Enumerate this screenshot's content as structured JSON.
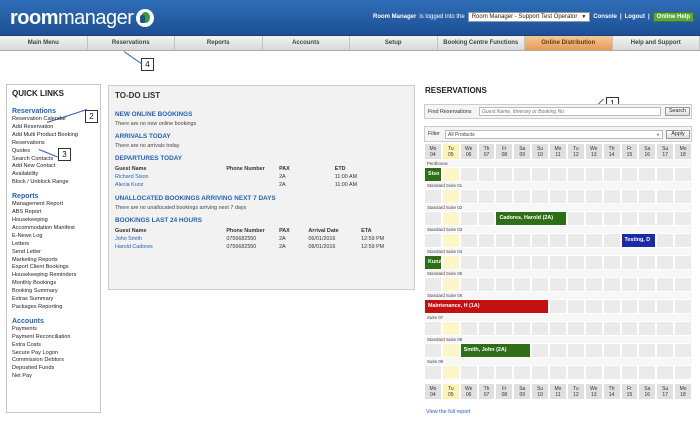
{
  "header": {
    "logo_bold": "room",
    "logo_thin": "manager",
    "logged_in_prefix": "Room Manager",
    "logged_in_text": "is logged into the",
    "account_selected": "Room Manager - Support Test Operator",
    "console": "Console",
    "logout": "Logout",
    "online_help": "Online Help"
  },
  "nav": [
    {
      "label": "Main Menu",
      "active": false
    },
    {
      "label": "Reservations",
      "active": false
    },
    {
      "label": "Reports",
      "active": false
    },
    {
      "label": "Accounts",
      "active": false
    },
    {
      "label": "Setup",
      "active": false
    },
    {
      "label": "Booking Centre Functions",
      "active": false
    },
    {
      "label": "Online Distribution",
      "active": true
    },
    {
      "label": "Help and Support",
      "active": false
    }
  ],
  "callouts": [
    "1",
    "2",
    "3",
    "4"
  ],
  "quick_links": {
    "title": "QUICK LINKS",
    "sections": [
      {
        "heading": "Reservations",
        "links": [
          "Reservation Calendar",
          "Add Reservation",
          "Add Multi Product Booking",
          "Reservations",
          "Quotes",
          "Search Contacts",
          "Add New Contact",
          "Availability",
          "Block / Unblock Range"
        ]
      },
      {
        "heading": "Reports",
        "links": [
          "Management Report",
          "ABS Report",
          "Housekeeping",
          "Accommodation Manifest",
          "E-News Log",
          "Letters",
          "Send Letter",
          "Marketing Reports",
          "Export Client Bookings",
          "Housekeeping Reminders",
          "Monthly Bookings",
          "Booking Summary",
          "Extras Summary",
          "Packages Reporting"
        ]
      },
      {
        "heading": "Accounts",
        "links": [
          "Payments",
          "Payment Reconciliation",
          "Extra Costs",
          "Secure Pay Logon",
          "Commission Debtors",
          "Deposited Funds",
          "Net Pay"
        ]
      }
    ]
  },
  "todo": {
    "title": "TO-DO LIST",
    "new_online": {
      "heading": "NEW ONLINE BOOKINGS",
      "note": "There are no new online bookings"
    },
    "arrivals": {
      "heading": "ARRIVALS TODAY",
      "note": "There are no arrivals today"
    },
    "departures": {
      "heading": "DEPARTURES TODAY",
      "columns": [
        "Guest Name",
        "Phone Number",
        "PAX",
        "ETD"
      ],
      "rows": [
        [
          "Richard Sison",
          "",
          "2A",
          "11:00 AM"
        ],
        [
          "Alecia Kunz",
          "",
          "2A",
          "11:00 AM"
        ]
      ]
    },
    "unallocated": {
      "heading": "UNALLOCATED BOOKINGS ARRIVING NEXT 7 DAYS",
      "note": "There are no unallocated bookings arriving next 7 days"
    },
    "last24": {
      "heading": "BOOKINGS LAST 24 HOURS",
      "columns": [
        "Guest Name",
        "Phone Number",
        "PAX",
        "Arrival Date",
        "ETA"
      ],
      "rows": [
        [
          "John Smith",
          "0756682550",
          "2A",
          "06/01/2016",
          "12:59 PM"
        ],
        [
          "Harold Cadores",
          "0756682550",
          "2A",
          "08/01/2016",
          "12:59 PM"
        ]
      ]
    }
  },
  "reservations": {
    "title": "RESERVATIONS",
    "find_label": "Find Reservations",
    "find_placeholder": "Guest Name, Itinerary or Booking No",
    "search_button": "Search",
    "filter_label": "Filter",
    "filter_value": "All Products",
    "apply_button": "Apply",
    "days": [
      [
        "Mo",
        "04"
      ],
      [
        "Tu",
        "05"
      ],
      [
        "We",
        "06"
      ],
      [
        "Th",
        "07"
      ],
      [
        "Fr",
        "08"
      ],
      [
        "Sa",
        "09"
      ],
      [
        "Su",
        "10"
      ],
      [
        "Mo",
        "11"
      ],
      [
        "Tu",
        "12"
      ],
      [
        "We",
        "13"
      ],
      [
        "Th",
        "14"
      ],
      [
        "Fr",
        "15"
      ],
      [
        "Sa",
        "16"
      ],
      [
        "Su",
        "17"
      ],
      [
        "Mo",
        "18"
      ]
    ],
    "today_index": 1,
    "rooms": [
      {
        "name": "Penthouse",
        "bookings": [
          {
            "label": "Siso",
            "start": 0,
            "span": 1,
            "color": "#2e6e16"
          }
        ]
      },
      {
        "name": "Standard Suite 01",
        "bookings": []
      },
      {
        "name": "Standard Suite 02",
        "bookings": [
          {
            "label": "Cadores, Harold (2A)",
            "start": 4,
            "span": 4,
            "color": "#2e6e16"
          }
        ]
      },
      {
        "name": "Standard Suite 03",
        "bookings": [
          {
            "label": "Testing, D",
            "start": 11,
            "span": 2,
            "color": "#1a2aa8"
          }
        ]
      },
      {
        "name": "Standard Suite 04",
        "bookings": [
          {
            "label": "Kunz",
            "start": 0,
            "span": 1,
            "color": "#2e6e16"
          }
        ]
      },
      {
        "name": "Standard Suite 05",
        "bookings": []
      },
      {
        "name": "Standard Suite 06",
        "bookings": [
          {
            "label": "Maintenance, H (1A)",
            "start": 0,
            "span": 7,
            "color": "#c41010"
          }
        ]
      },
      {
        "name": "Suite 07",
        "bookings": []
      },
      {
        "name": "Standard Suite 08",
        "bookings": [
          {
            "label": "Smith, John (2A)",
            "start": 2,
            "span": 4,
            "color": "#2e6e16"
          }
        ]
      },
      {
        "name": "Suite 09",
        "bookings": []
      }
    ],
    "view_full_report": "View the full report"
  },
  "colors": {
    "header_blue": "#2f6fb8",
    "link_blue": "#2463b6",
    "active_nav": "#e79b58",
    "help_green": "#5aa83a"
  }
}
